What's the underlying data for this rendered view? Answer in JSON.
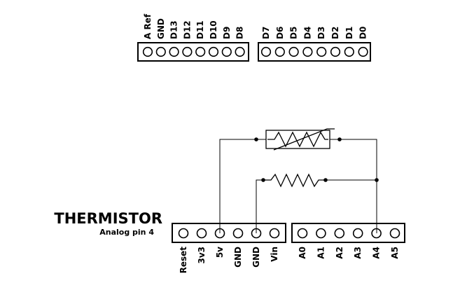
{
  "title": "THERMISTOR",
  "subtitle": "Analog pin 4",
  "top_left_header": [
    "A Ref",
    "GND",
    "D13",
    "D12",
    "D11",
    "D10",
    "D9",
    "D8"
  ],
  "top_right_header": [
    "D7",
    "D6",
    "D5",
    "D4",
    "D3",
    "D2",
    "D1",
    "D0"
  ],
  "bottom_left_header": [
    "Reset",
    "3v3",
    "5v",
    "GND",
    "GND",
    "Vin"
  ],
  "bottom_right_header": [
    "A0",
    "A1",
    "A2",
    "A3",
    "A4",
    "A5"
  ],
  "components": [
    {
      "type": "thermistor",
      "connects": [
        "5v",
        "A4"
      ]
    },
    {
      "type": "resistor",
      "connects": [
        "GND",
        "A4"
      ]
    }
  ]
}
